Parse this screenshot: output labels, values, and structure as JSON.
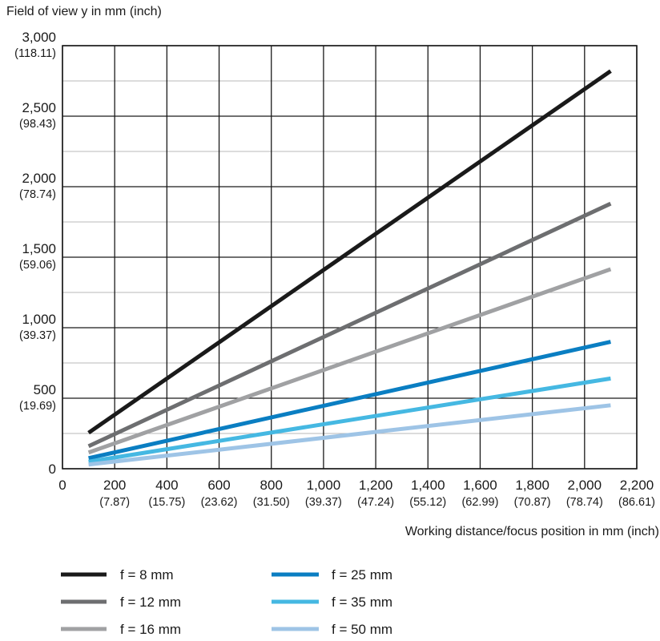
{
  "chart_data": {
    "type": "line",
    "ylabel": "Field of view y in mm (inch)",
    "xlabel": "Working distance/focus position in mm (inch)",
    "xlim": [
      0,
      2200
    ],
    "ylim": [
      0,
      3000
    ],
    "grid": true,
    "legend_position": "bottom",
    "x_ticks": [
      {
        "value": 0,
        "label": "0",
        "sub": ""
      },
      {
        "value": 200,
        "label": "200",
        "sub": "(7.87)"
      },
      {
        "value": 400,
        "label": "400",
        "sub": "(15.75)"
      },
      {
        "value": 600,
        "label": "600",
        "sub": "(23.62)"
      },
      {
        "value": 800,
        "label": "800",
        "sub": "(31.50)"
      },
      {
        "value": 1000,
        "label": "1,000",
        "sub": "(39.37)"
      },
      {
        "value": 1200,
        "label": "1,200",
        "sub": "(47.24)"
      },
      {
        "value": 1400,
        "label": "1,400",
        "sub": "(55.12)"
      },
      {
        "value": 1600,
        "label": "1,600",
        "sub": "(62.99)"
      },
      {
        "value": 1800,
        "label": "1,800",
        "sub": "(70.87)"
      },
      {
        "value": 2000,
        "label": "2,000",
        "sub": "(78.74)"
      },
      {
        "value": 2200,
        "label": "2,200",
        "sub": "(86.61)"
      }
    ],
    "y_ticks": [
      {
        "value": 0,
        "label": "0",
        "sub": ""
      },
      {
        "value": 500,
        "label": "500",
        "sub": "(19.69)"
      },
      {
        "value": 1000,
        "label": "1,000",
        "sub": "(39.37)"
      },
      {
        "value": 1500,
        "label": "1,500",
        "sub": "(59.06)"
      },
      {
        "value": 2000,
        "label": "2,000",
        "sub": "(78.74)"
      },
      {
        "value": 2500,
        "label": "2,500",
        "sub": "(98.43)"
      },
      {
        "value": 3000,
        "label": "3,000",
        "sub": "(118.11)"
      }
    ],
    "series": [
      {
        "name": "f = 8 mm",
        "color": "#1a1a1a",
        "x": [
          100,
          2100
        ],
        "y": [
          255,
          2820
        ]
      },
      {
        "name": "f = 12 mm",
        "color": "#6d6e70",
        "x": [
          100,
          2100
        ],
        "y": [
          160,
          1880
        ]
      },
      {
        "name": "f = 16 mm",
        "color": "#a0a1a3",
        "x": [
          100,
          2100
        ],
        "y": [
          115,
          1415
        ]
      },
      {
        "name": "f = 25 mm",
        "color": "#0a7ec2",
        "x": [
          100,
          2100
        ],
        "y": [
          75,
          900
        ]
      },
      {
        "name": "f = 35 mm",
        "color": "#45b8e2",
        "x": [
          100,
          2100
        ],
        "y": [
          50,
          640
        ]
      },
      {
        "name": "f = 50 mm",
        "color": "#9ec4e6",
        "x": [
          100,
          2100
        ],
        "y": [
          30,
          450
        ]
      }
    ]
  }
}
